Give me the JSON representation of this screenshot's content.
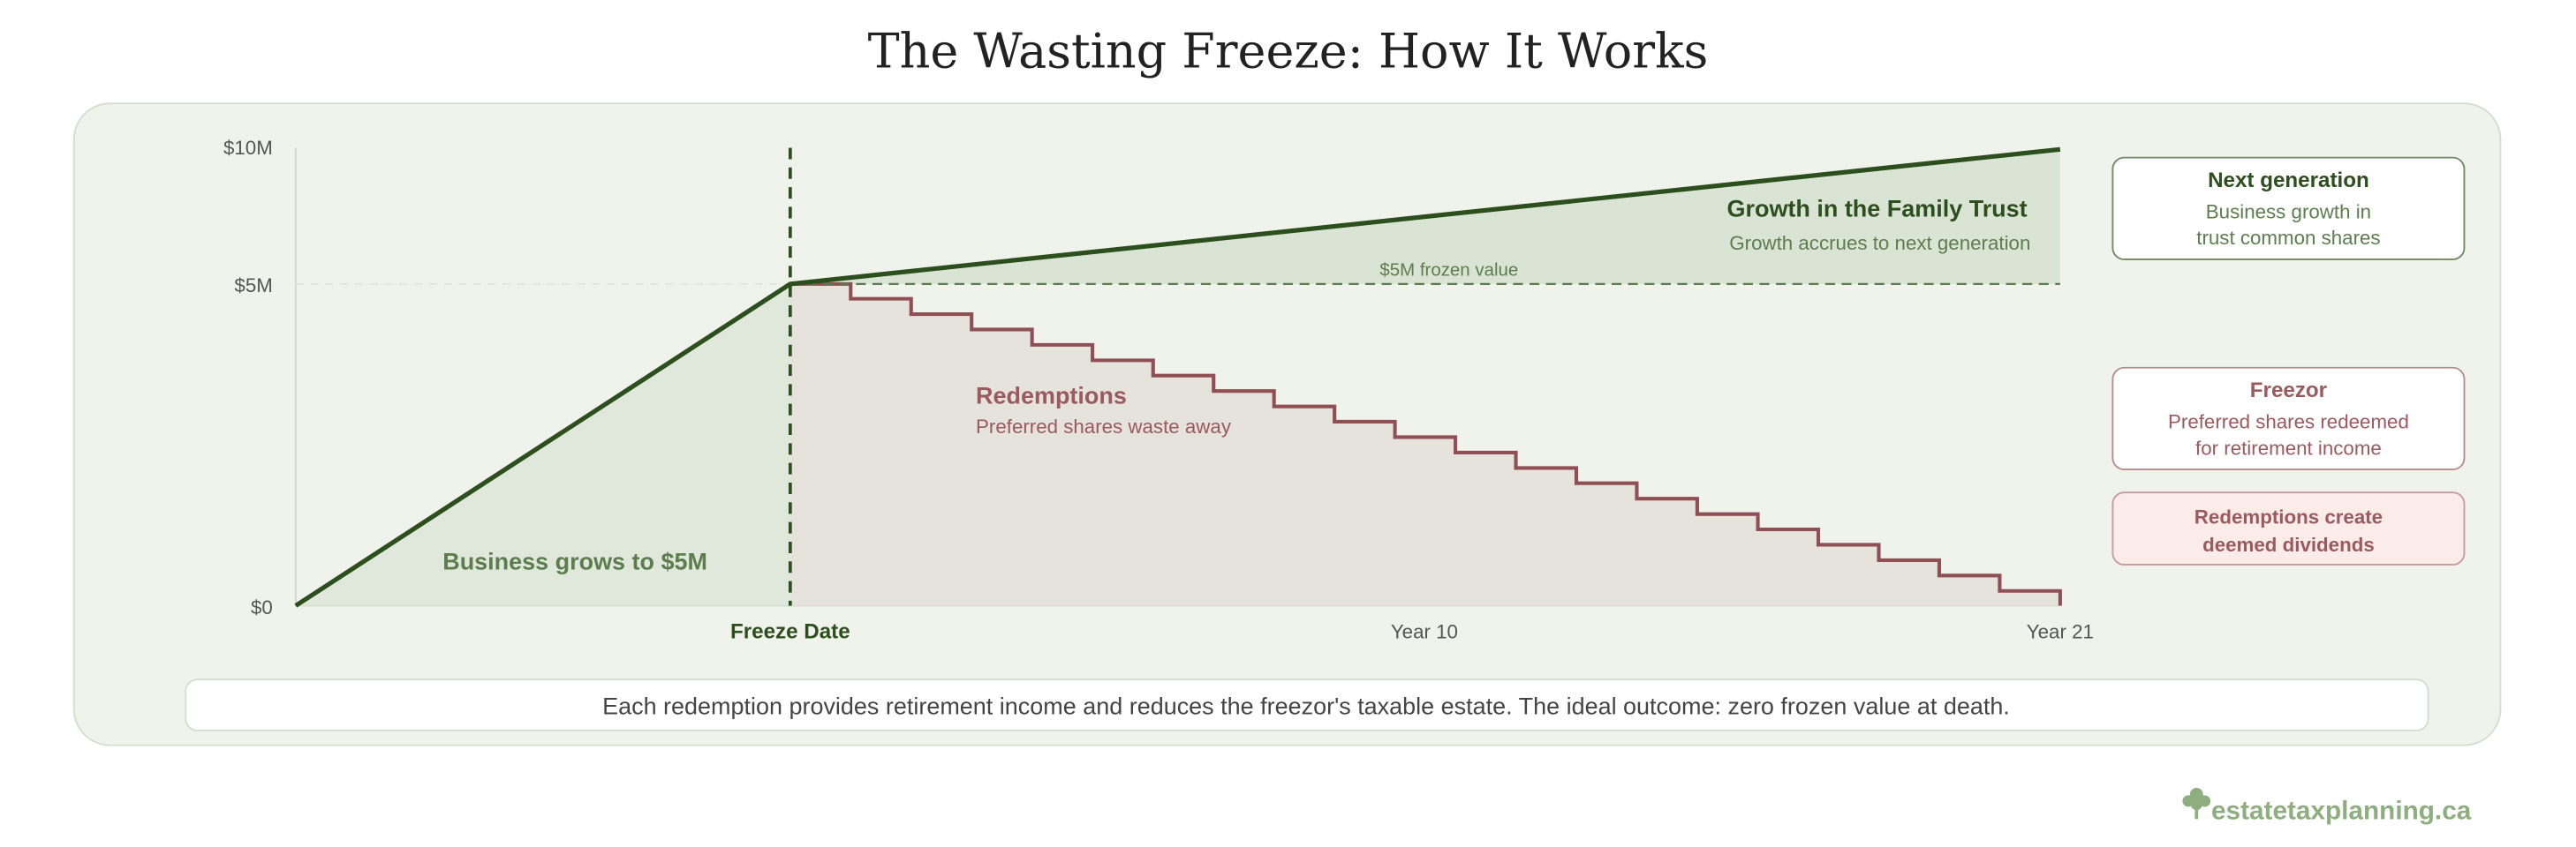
{
  "title": "The Wasting Freeze: How It Works",
  "y_axis_labels": [
    "$10M",
    "$5M",
    "$0"
  ],
  "x_axis_labels": [
    "Freeze Date",
    "Year 10",
    "Year 21"
  ],
  "annotations": {
    "pre_freeze": "Business grows to $5M",
    "frozen_value": "$5M frozen value",
    "growth_title": "Growth in the Family Trust",
    "growth_subtitle": "Growth accrues to next generation",
    "redemptions_title": "Redemptions",
    "redemptions_subtitle": "Preferred shares waste away"
  },
  "legend": [
    {
      "title": "Next generation",
      "lines": [
        "Business growth in",
        "trust common shares"
      ]
    },
    {
      "title": "Freezor",
      "lines": [
        "Preferred shares redeemed",
        "for retirement income"
      ]
    },
    {
      "lines": [
        "Redemptions create",
        "deemed dividends"
      ]
    }
  ],
  "note": "Each redemption provides retirement income and reduces the freezor's taxable estate. The ideal outcome: zero frozen value at death.",
  "brand": "estatetaxplanning.ca"
}
